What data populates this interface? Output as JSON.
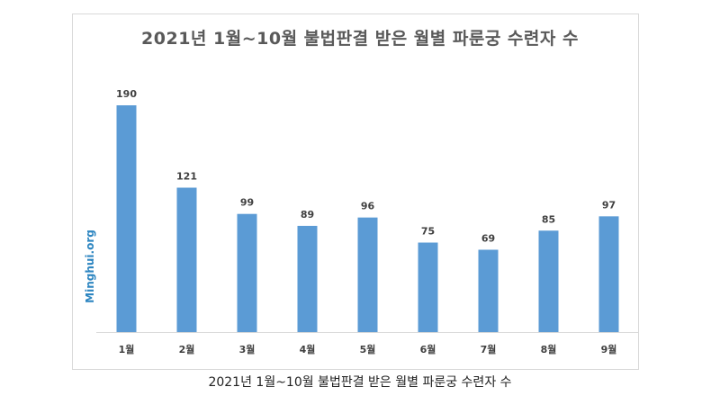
{
  "caption": "2021년 1월~10월 불법판결 받은 월별 파룬궁 수련자 수",
  "watermark": "Minghui.org",
  "colors": {
    "bar": "#5b9bd5",
    "watermark": "#2e86c1"
  },
  "chart_data": {
    "type": "bar",
    "title": "2021년 1월~10월 불법판결 받은 월별 파룬궁 수련자 수",
    "categories": [
      "1월",
      "2월",
      "3월",
      "4월",
      "5월",
      "6월",
      "7월",
      "8월",
      "9월"
    ],
    "values": [
      190,
      121,
      99,
      89,
      96,
      75,
      69,
      85,
      97
    ],
    "ylim": [
      0,
      190
    ],
    "grid": false,
    "legend": false,
    "data_labels": true
  }
}
